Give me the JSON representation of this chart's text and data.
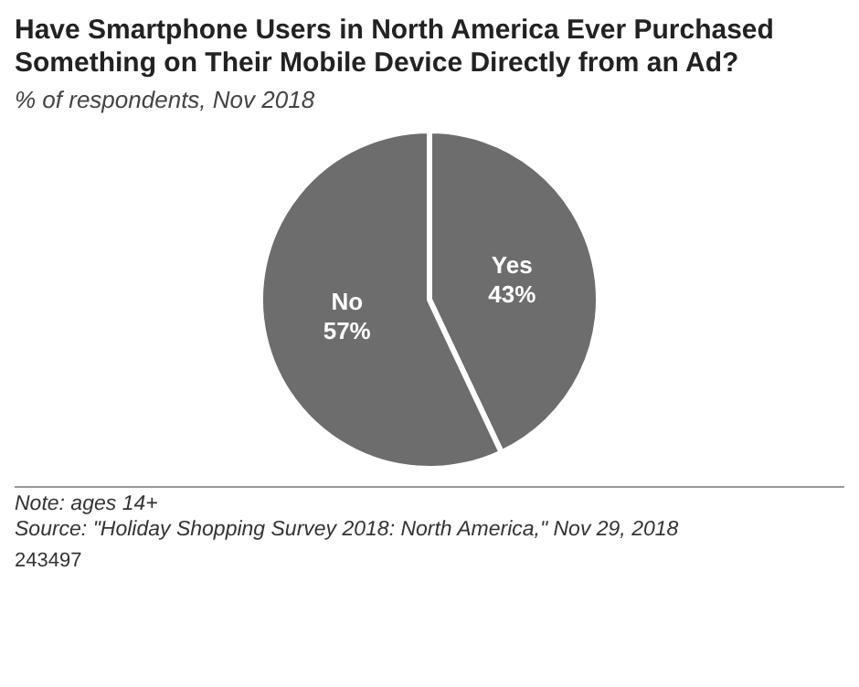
{
  "chart_data": {
    "type": "pie",
    "title": "Have Smartphone Users in North America Ever Purchased Something on Their Mobile Device Directly from an Ad?",
    "subtitle": "% of respondents, Nov 2018",
    "categories": [
      "Yes",
      "No"
    ],
    "values": [
      43,
      57
    ],
    "colors": [
      "#6d6d6e",
      "#6d6d6e"
    ],
    "value_labels": [
      "43%",
      "57%"
    ],
    "annotations": [
      "Note: ages 14+",
      "Source: \"Holiday Shopping Survey 2018: North America,\" Nov 29, 2018",
      "243497"
    ]
  }
}
